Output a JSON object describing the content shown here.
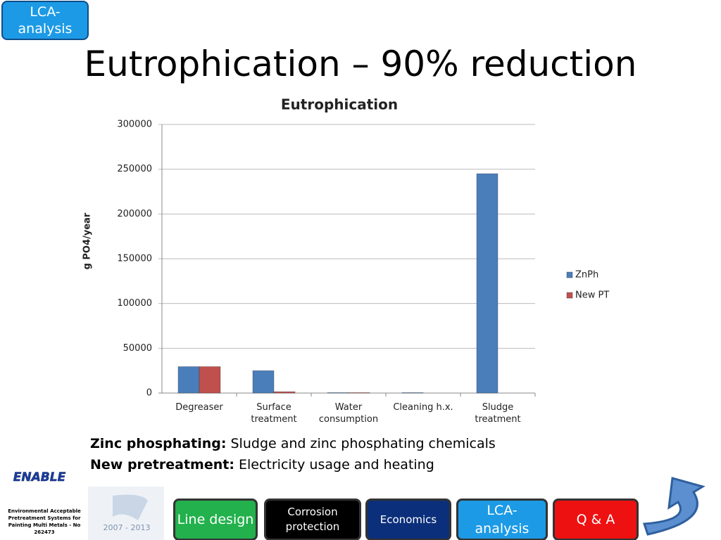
{
  "badge": "LCA-analysis",
  "slide_title": "Eutrophication – 90% reduction",
  "chart_data": {
    "type": "bar",
    "title": "Eutrophication",
    "y_label": "g PO4/year",
    "categories": [
      "Degreaser",
      "Surface treatment",
      "Water consumption",
      "Cleaning h.x.",
      "Sludge treatment"
    ],
    "series": [
      {
        "name": "ZnPh",
        "color": "#4a7ebb",
        "values": [
          29500,
          25000,
          500,
          500,
          245000
        ]
      },
      {
        "name": "New PT",
        "color": "#c0504d",
        "values": [
          29500,
          1500,
          500,
          0,
          0
        ]
      }
    ],
    "ylim": [
      0,
      300000
    ],
    "yticks": [
      0,
      50000,
      100000,
      150000,
      200000,
      250000,
      300000
    ],
    "grid": true,
    "legend": "right"
  },
  "notes": [
    {
      "label": "Zinc phosphating:",
      "text": "Sludge and zinc phosphating chemicals"
    },
    {
      "label": "New pretreatment:",
      "text": "Electricity usage and heating"
    }
  ],
  "logo": {
    "name": "ENABLE",
    "caption": "Environmental Acceptable Pretreatment Systems for Painting Multi Metals - No 262473",
    "fp7_years": "2007 - 2013"
  },
  "nav": [
    "Line design",
    "Corrosion protection",
    "Economics",
    "LCA-analysis",
    "Q & A"
  ]
}
